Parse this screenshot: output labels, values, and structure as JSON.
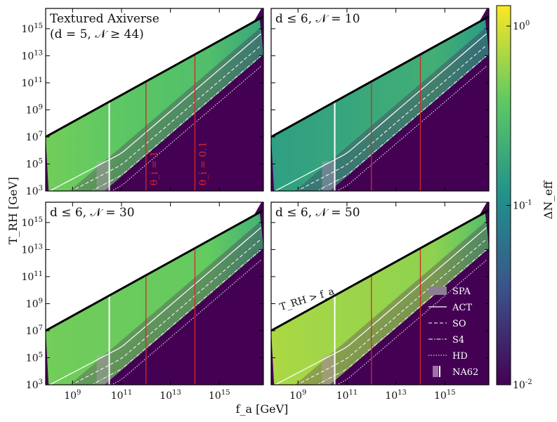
{
  "chart_data": {
    "type": "heatmap",
    "figure": "Axiverse dark radiation constraints in the (f_a, T_RH) plane",
    "xlabel": "f_a [GeV]",
    "ylabel": "T_RH [GeV]",
    "xscale": "log",
    "yscale": "log",
    "xlim_log10": [
      7.9,
      16.8
    ],
    "ylim_log10": [
      3,
      16.5
    ],
    "x_ticks": [
      {
        "log10": 9,
        "label": "10^9"
      },
      {
        "log10": 11,
        "label": "10^11"
      },
      {
        "log10": 13,
        "label": "10^13"
      },
      {
        "log10": 15,
        "label": "10^15"
      }
    ],
    "y_ticks": [
      {
        "log10": 3,
        "label": "10^3"
      },
      {
        "log10": 5,
        "label": "10^5"
      },
      {
        "log10": 7,
        "label": "10^7"
      },
      {
        "log10": 9,
        "label": "10^9"
      },
      {
        "log10": 11,
        "label": "10^11"
      },
      {
        "log10": 13,
        "label": "10^13"
      },
      {
        "log10": 15,
        "label": "10^15"
      }
    ],
    "colorbar": {
      "label": "ΔN_eff",
      "scale": "log",
      "range": [
        0.01,
        1.3
      ],
      "ticks": [
        {
          "value": 1,
          "label": "10^0"
        },
        {
          "value": 0.1,
          "label": "10^-1"
        },
        {
          "value": 0.01,
          "label": "10^-2"
        }
      ],
      "colormap": [
        "#440154",
        "#3b528b",
        "#21918c",
        "#5ec962",
        "#fde725"
      ]
    },
    "boundary": {
      "label": "T_RH > f_a",
      "relation": "T_RH = f_a"
    },
    "theta_lines": [
      {
        "label": "θ_i = 1",
        "f_a_log10": 12,
        "color": "#d62728"
      },
      {
        "label": "θ_i = 0.1",
        "f_a_log10": 14,
        "color": "#d62728"
      }
    ],
    "na62_f_a_log10": 10.5,
    "sensitivities": [
      {
        "name": "SPA",
        "delta_n_eff": 0.3,
        "style": "shaded"
      },
      {
        "name": "ACT",
        "delta_n_eff": 0.17,
        "style": "solid"
      },
      {
        "name": "SO",
        "delta_n_eff": 0.1,
        "style": "dashed"
      },
      {
        "name": "S4",
        "delta_n_eff": 0.06,
        "style": "dashdot"
      },
      {
        "name": "HD",
        "delta_n_eff": 0.027,
        "style": "dotted"
      },
      {
        "name": "NA62",
        "style": "band"
      }
    ],
    "panels": [
      {
        "id": "textured",
        "title_line1": "Textured Axiverse",
        "title_line2": "(d = 5, 𝒩 ≥ 44)",
        "plateau_delta_n_eff": 0.45,
        "high_fa_delta_n_eff": 0.3,
        "show_theta_labels": true
      },
      {
        "id": "n10",
        "title_line1": "d ≤ 6, 𝒩 = 10",
        "title_line2": "",
        "plateau_delta_n_eff": 0.15,
        "high_fa_delta_n_eff": 0.22
      },
      {
        "id": "n30",
        "title_line1": "d ≤ 6, 𝒩 = 30",
        "title_line2": "",
        "plateau_delta_n_eff": 0.45,
        "high_fa_delta_n_eff": 0.4
      },
      {
        "id": "n50",
        "title_line1": "d ≤ 6, 𝒩 = 50",
        "title_line2": "",
        "plateau_delta_n_eff": 0.7,
        "high_fa_delta_n_eff": 0.55,
        "show_legend": true,
        "show_boundary_label": true
      }
    ]
  }
}
